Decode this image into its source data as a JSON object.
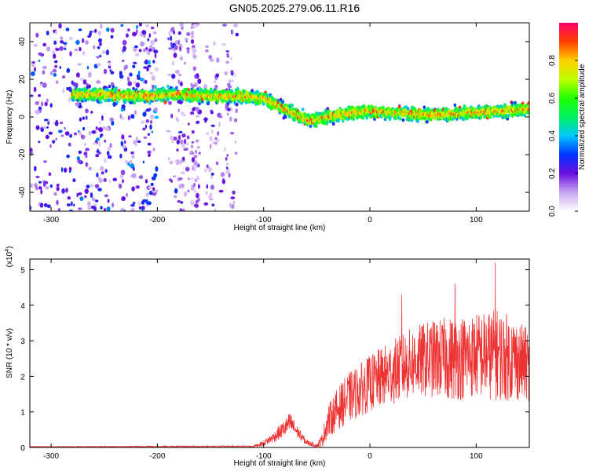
{
  "title": "GN05.2025.279.06.11.R16",
  "chart_data": [
    {
      "type": "heatmap",
      "xlabel": "Height of straight line (km)",
      "ylabel": "Frequency (Hz)",
      "xlim": [
        -320,
        150
      ],
      "ylim": [
        -50,
        50
      ],
      "xticks": [
        -300,
        -200,
        -100,
        0,
        100
      ],
      "xtick_labels": [
        "-300",
        "-200",
        "-100",
        "0",
        "100"
      ],
      "yticks": [
        -40,
        -20,
        0,
        20,
        40
      ],
      "ytick_labels": [
        "-40",
        "-20",
        "0",
        "20",
        "40"
      ],
      "colorbar": {
        "label": "Normalized spectral amplitude",
        "range": [
          0,
          1
        ],
        "ticks": [
          0.0,
          0.2,
          0.4,
          0.6,
          0.8
        ],
        "tick_labels": [
          "0.0",
          "0.2",
          "0.4",
          "0.6",
          "0.8"
        ]
      },
      "ridge": {
        "x": [
          -280,
          -250,
          -220,
          -180,
          -150,
          -120,
          -100,
          -80,
          -65,
          -55,
          -40,
          -20,
          0,
          30,
          60,
          90,
          120,
          150
        ],
        "y": [
          12,
          12,
          11,
          12,
          11,
          11,
          10,
          4,
          0,
          -2,
          0,
          2,
          3,
          2,
          1,
          2,
          3,
          4
        ]
      },
      "noise_bands": [
        {
          "x_start": -320,
          "x_end": -240,
          "level": 0.3
        },
        {
          "x_start": -235,
          "x_end": -200,
          "level": 0.35
        },
        {
          "x_start": -190,
          "x_end": -170,
          "level": 0.2
        },
        {
          "x_start": -168,
          "x_end": -160,
          "level": 0.15
        },
        {
          "x_start": -155,
          "x_end": -125,
          "level": 0.15
        }
      ]
    },
    {
      "type": "line",
      "xlabel": "Height of straight line (km)",
      "ylabel": "SNR (10 * v/v)",
      "scale_label": "(x10",
      "scale_exponent": "4",
      "scale_suffix": ")",
      "xlim": [
        -320,
        150
      ],
      "ylim": [
        0,
        5.3
      ],
      "xticks": [
        -300,
        -200,
        -100,
        0,
        100
      ],
      "xtick_labels": [
        "-300",
        "-200",
        "-100",
        "0",
        "100"
      ],
      "yticks": [
        0,
        1,
        2,
        3,
        4,
        5
      ],
      "ytick_labels": [
        "0",
        "1",
        "2",
        "3",
        "4",
        "5"
      ],
      "color": "#ee3333",
      "envelope": {
        "x": [
          -320,
          -110,
          -100,
          -90,
          -80,
          -75,
          -70,
          -60,
          -50,
          -45,
          -40,
          -30,
          -20,
          0,
          20,
          40,
          60,
          80,
          100,
          120,
          135,
          150
        ],
        "mean": [
          0.02,
          0.03,
          0.12,
          0.3,
          0.55,
          0.7,
          0.5,
          0.15,
          0.05,
          0.2,
          0.7,
          1.1,
          1.4,
          1.8,
          2.1,
          2.4,
          2.5,
          2.5,
          2.6,
          2.6,
          2.5,
          2.3
        ],
        "spread": [
          0.01,
          0.02,
          0.08,
          0.15,
          0.25,
          0.3,
          0.2,
          0.08,
          0.05,
          0.2,
          0.45,
          0.6,
          0.7,
          0.8,
          0.9,
          1.0,
          1.1,
          1.2,
          1.2,
          1.3,
          1.2,
          1.0
        ]
      },
      "annotated_peaks": [
        {
          "x": 118,
          "y": 5.2
        },
        {
          "x": 80,
          "y": 4.6
        },
        {
          "x": 30,
          "y": 4.3
        }
      ]
    }
  ]
}
